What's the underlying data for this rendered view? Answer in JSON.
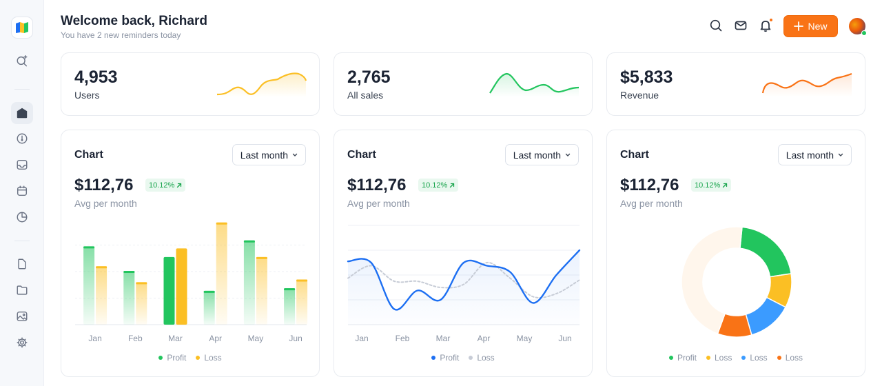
{
  "header": {
    "title": "Welcome back, Richard",
    "subtitle": "You have 2 new reminders today",
    "new_button": "New"
  },
  "colors": {
    "accent": "#f97316",
    "green": "#22c55e",
    "yellow": "#fbbf24",
    "blue": "#1d6ff2",
    "sky": "#3b9bff",
    "orange": "#f97316"
  },
  "stats": [
    {
      "value": "4,953",
      "label": "Users"
    },
    {
      "value": "2,765",
      "label": "All sales"
    },
    {
      "value": "$5,833",
      "label": "Revenue"
    }
  ],
  "sidebar_icons": [
    "search-sparkle-icon",
    "home-icon",
    "gauge-icon",
    "inbox-icon",
    "calendar-icon",
    "pie-chart-icon",
    "file-icon",
    "folder-icon",
    "image-icon",
    "settings-icon"
  ],
  "charts": [
    {
      "title": "Chart",
      "dropdown": "Last month",
      "value": "$112,76",
      "change": "10.12%",
      "subtitle": "Avg per month"
    },
    {
      "title": "Chart",
      "dropdown": "Last month",
      "value": "$112,76",
      "change": "10.12%",
      "subtitle": "Avg per month"
    },
    {
      "title": "Chart",
      "dropdown": "Last month",
      "value": "$112,76",
      "change": "10.12%",
      "subtitle": "Avg per month"
    }
  ],
  "chart_data": [
    {
      "type": "bar",
      "categories": [
        "Jan",
        "Feb",
        "Mar",
        "Apr",
        "May",
        "Jun"
      ],
      "series": [
        {
          "name": "Profit",
          "values": [
            118,
            81,
            102,
            51,
            127,
            55
          ],
          "color": "#22c55e"
        },
        {
          "name": "Loss",
          "values": [
            88,
            64,
            115,
            154,
            102,
            68
          ],
          "color": "#fbbf24"
        }
      ],
      "highlighted_category": "Mar",
      "ylim": [
        0,
        160
      ],
      "grid": true,
      "legend": "bottom"
    },
    {
      "type": "line",
      "categories": [
        "Jan",
        "Feb",
        "Mar",
        "Apr",
        "May",
        "Jun"
      ],
      "x": [
        0,
        0.5,
        1,
        1.5,
        2,
        2.5,
        3,
        3.5,
        4,
        4.5,
        5
      ],
      "series": [
        {
          "name": "Profit",
          "values": [
            102,
            100,
            25,
            55,
            40,
            100,
            95,
            85,
            35,
            80,
            120
          ],
          "color": "#1d6ff2"
        },
        {
          "name": "Loss",
          "values": [
            75,
            95,
            70,
            70,
            60,
            65,
            100,
            75,
            45,
            50,
            72
          ],
          "color": "#c7ccd6"
        }
      ],
      "ylim": [
        0,
        160
      ],
      "grid": true,
      "legend": "bottom"
    },
    {
      "type": "pie",
      "categories": [
        "Profit",
        "Loss",
        "Loss",
        "Loss",
        "Remainder"
      ],
      "values": [
        21,
        10,
        13,
        10,
        46
      ],
      "colors": [
        "#22c55e",
        "#fbbf24",
        "#3b9bff",
        "#f97316",
        "#fff6ec"
      ],
      "legend_items": [
        {
          "name": "Profit",
          "color": "#22c55e"
        },
        {
          "name": "Loss",
          "color": "#fbbf24"
        },
        {
          "name": "Loss",
          "color": "#3b9bff"
        },
        {
          "name": "Loss",
          "color": "#f97316"
        }
      ],
      "legend": "bottom"
    }
  ]
}
